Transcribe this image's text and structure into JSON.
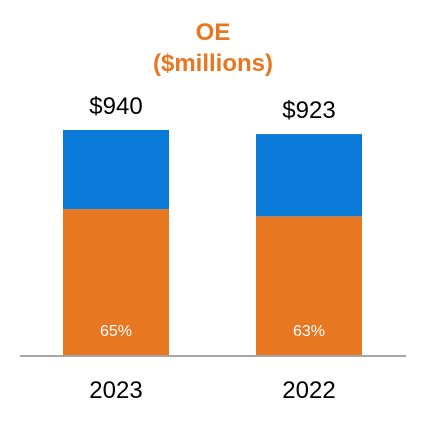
{
  "chart_data": {
    "type": "bar",
    "stacked": true,
    "title_lines": [
      "OE",
      "($millions)"
    ],
    "categories": [
      "2023",
      "2022"
    ],
    "totals": [
      940,
      923
    ],
    "total_labels": [
      "$940",
      "$923"
    ],
    "series": [
      {
        "values": [
          611,
          581
        ],
        "color": "#E87722"
      },
      {
        "values": [
          329,
          342
        ],
        "color": "#0A7AD8"
      }
    ],
    "segment_labels": [
      "65%",
      "63%"
    ],
    "ylim": [
      0,
      1000
    ],
    "grid": false,
    "legend": "none"
  },
  "colors": {
    "title": "#E87722",
    "baseline": "#A6A6A6",
    "segment_text": "#FFFFFF"
  }
}
